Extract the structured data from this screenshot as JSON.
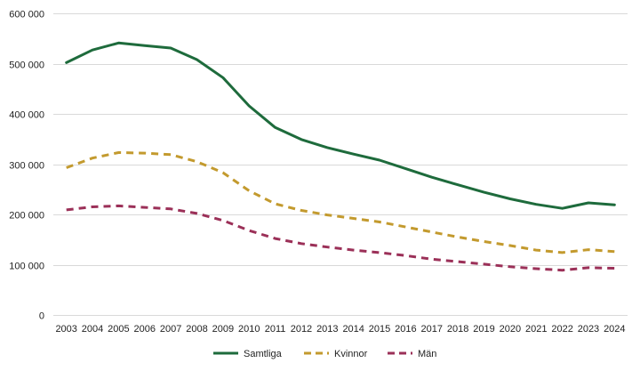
{
  "chart_data": {
    "type": "line",
    "title": "",
    "xlabel": "",
    "ylabel": "",
    "x": [
      "2003",
      "2004",
      "2005",
      "2006",
      "2007",
      "2008",
      "2009",
      "2010",
      "2011",
      "2012",
      "2013",
      "2014",
      "2015",
      "2016",
      "2017",
      "2018",
      "2019",
      "2020",
      "2021",
      "2022",
      "2023",
      "2024"
    ],
    "ylim": [
      0,
      600000
    ],
    "yticks": [
      0,
      100000,
      200000,
      300000,
      400000,
      500000,
      600000
    ],
    "ytick_labels": [
      "0",
      "100 000",
      "200 000",
      "300 000",
      "400 000",
      "500 000",
      "600 000"
    ],
    "grid": "horizontal",
    "legend_position": "bottom",
    "series": [
      {
        "name": "Samtliga",
        "color": "#1e6b3c",
        "style": "solid",
        "values": [
          502000,
          527000,
          541000,
          536000,
          531000,
          508000,
          472000,
          416000,
          373000,
          349000,
          333000,
          320000,
          308000,
          291000,
          274000,
          259000,
          244000,
          231000,
          220000,
          212000,
          223000,
          219000
        ]
      },
      {
        "name": "Kvinnor",
        "color": "#c39a2e",
        "style": "dashed",
        "values": [
          293000,
          312000,
          323000,
          322000,
          319000,
          305000,
          283000,
          247000,
          221000,
          208000,
          199000,
          192000,
          185000,
          175000,
          165000,
          155000,
          146000,
          138000,
          129000,
          124000,
          130000,
          126000
        ]
      },
      {
        "name": "Män",
        "color": "#9b3058",
        "style": "dashed",
        "values": [
          209000,
          215000,
          217000,
          214000,
          211000,
          202000,
          188000,
          168000,
          152000,
          142000,
          135000,
          129000,
          124000,
          118000,
          111000,
          106000,
          101000,
          96000,
          92000,
          89000,
          94000,
          93000
        ]
      }
    ]
  }
}
